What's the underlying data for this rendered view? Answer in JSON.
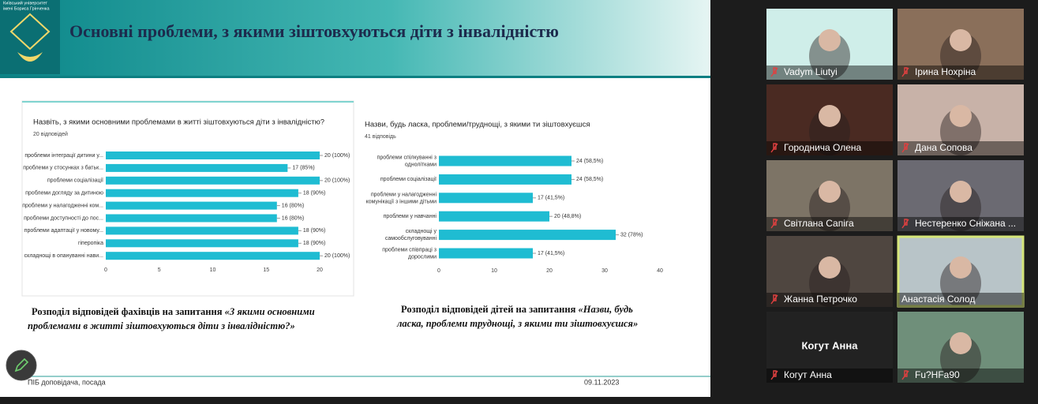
{
  "slide": {
    "logo": {
      "lines": [
        "Київський університет",
        "імені Бориса Грінченка"
      ]
    },
    "title": "Основні проблеми, з якими зіштовхуються діти з інвалідністю",
    "charts": [
      {
        "type": "bar",
        "orientation": "horizontal",
        "title": "Назвіть, з якими основними проблемами в житті зіштовхуються діти з інвалідністю?",
        "subtitle": "20 відповідей",
        "categories": [
          "проблеми інтеграції дитини у...",
          "проблеми у стосунках з батьк...",
          "проблеми соціалізації",
          "проблеми догляду за дитиною",
          "проблеми у налагодженні ком...",
          "проблеми доступності до пос...",
          "проблеми адаптації у новому...",
          "гіперопіка",
          "складнощі в опануванні нави..."
        ],
        "values": [
          20,
          17,
          20,
          18,
          16,
          16,
          18,
          18,
          20
        ],
        "value_labels": [
          "20 (100%)",
          "17 (85%)",
          "20 (100%)",
          "18 (90%)",
          "16 (80%)",
          "16 (80%)",
          "18 (90%)",
          "18 (90%)",
          "20 (100%)"
        ],
        "color": "#1fbcd2",
        "xlim": [
          0,
          20
        ],
        "xticks": [
          0,
          5,
          10,
          15,
          20
        ],
        "grid": false
      },
      {
        "type": "bar",
        "orientation": "horizontal",
        "title": "Назви, будь ласка, проблеми/труднощі, з якими ти зіштовхуєшся",
        "subtitle": "41 відповідь",
        "categories": [
          "проблеми спілкуванні з\nоднолітками",
          "проблеми соціалізації",
          "проблеми у налагодженні\nкомунікації з іншими дітьми",
          "проблеми у навчанні",
          "складнощі у\nсамообслуговуванні",
          "проблеми співпраці з\nдорослими"
        ],
        "values": [
          24,
          24,
          17,
          20,
          32,
          17
        ],
        "value_labels": [
          "24 (58,5%)",
          "24 (58,5%)",
          "17 (41,5%)",
          "20 (48,8%)",
          "32 (78%)",
          "17 (41,5%)"
        ],
        "color": "#1fbcd2",
        "xlim": [
          0,
          40
        ],
        "xticks": [
          0,
          10,
          20,
          30,
          40
        ],
        "grid": false
      }
    ],
    "captions": [
      [
        [
          {
            "text": "Розподіл відповідей фахівців на запитання ",
            "italic": false
          },
          {
            "text": "«З якими основними",
            "italic": true
          }
        ],
        [
          {
            "text": "проблемами в житті зіштовхуються діти з інвалідністю?»",
            "italic": true
          }
        ]
      ],
      [
        [
          {
            "text": "Розподіл відповідей дітей на запитання ",
            "italic": false
          },
          {
            "text": "«Назви, будь",
            "italic": true
          }
        ],
        [
          {
            "text": "ласка, проблеми труднощі, з якими ти зіштовхуєшся»",
            "italic": true
          }
        ]
      ]
    ],
    "footer": {
      "author": "ПІБ доповідача, посада",
      "date": "09.11.2023"
    }
  },
  "participants": [
    {
      "name": "Vadym Liutyi"
    },
    {
      "name": "Ірина Нохріна"
    },
    {
      "name": "Городнича Олена"
    },
    {
      "name": "Дана Сопова"
    },
    {
      "name": "Світлана Сапіга"
    },
    {
      "name": "Нестеренко Сніжана ..."
    },
    {
      "name": "Жанна Петрочко"
    },
    {
      "name": "Анастасія Солод"
    },
    {
      "name": "Когут Анна"
    },
    {
      "name": "Fu?HFa90"
    }
  ]
}
